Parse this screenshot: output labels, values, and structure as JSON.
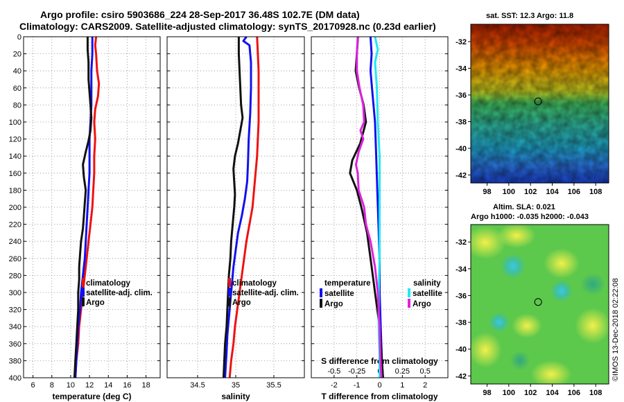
{
  "header": {
    "title_line1": "Argo profile: csiro 5903686_224 28-Sep-2017 36.48S 102.7E (DM data)",
    "title_line2": "Climatology: CARS2009. Satellite-adjusted climatology: synTS_20170928.nc (0.23d earlier)"
  },
  "colors": {
    "climatology": "#ee1111",
    "satellite": "#1111ee",
    "argo": "#111111",
    "satellite_cyan": "#22e8f0",
    "argo_magenta": "#dd22dd"
  },
  "chart_data": [
    {
      "type": "line",
      "id": "temperature",
      "xlabel": "temperature (deg C)",
      "ylabel": "",
      "xlim": [
        5,
        19.5
      ],
      "ylim": [
        400,
        0
      ],
      "xticks": [
        6,
        8,
        10,
        12,
        14,
        16,
        18
      ],
      "xtick_labels": [
        "6",
        "8",
        "10",
        "12",
        "14",
        "16",
        "18"
      ],
      "yticks": [
        0,
        20,
        40,
        60,
        80,
        100,
        120,
        140,
        160,
        180,
        200,
        220,
        240,
        260,
        280,
        300,
        320,
        340,
        360,
        380,
        400
      ],
      "ytick_labels": [
        "0",
        "20",
        "40",
        "60",
        "80",
        "100",
        "120",
        "140",
        "160",
        "180",
        "200",
        "220",
        "240",
        "260",
        "280",
        "300",
        "320",
        "340",
        "360",
        "380",
        "400"
      ],
      "legend": [
        "climatology",
        "satellite-adj. clim.",
        "Argo"
      ],
      "series": [
        {
          "name": "climatology",
          "color": "#ee1111",
          "points": [
            [
              12.7,
              0
            ],
            [
              12.6,
              10
            ],
            [
              12.7,
              20
            ],
            [
              12.8,
              40
            ],
            [
              13.0,
              55
            ],
            [
              12.9,
              70
            ],
            [
              12.6,
              85
            ],
            [
              12.5,
              100
            ],
            [
              12.6,
              120
            ],
            [
              12.5,
              140
            ],
            [
              12.5,
              160
            ],
            [
              12.4,
              180
            ],
            [
              12.3,
              200
            ],
            [
              12.1,
              220
            ],
            [
              11.9,
              240
            ],
            [
              11.7,
              260
            ],
            [
              11.5,
              280
            ],
            [
              11.3,
              300
            ],
            [
              11.1,
              320
            ],
            [
              10.9,
              340
            ],
            [
              10.8,
              360
            ],
            [
              10.6,
              380
            ],
            [
              10.5,
              400
            ]
          ]
        },
        {
          "name": "satellite-adj. clim.",
          "color": "#1111ee",
          "points": [
            [
              12.3,
              0
            ],
            [
              12.3,
              10
            ],
            [
              12.3,
              20
            ],
            [
              12.2,
              40
            ],
            [
              12.2,
              60
            ],
            [
              12.2,
              80
            ],
            [
              12.1,
              100
            ],
            [
              12.0,
              120
            ],
            [
              12.0,
              140
            ],
            [
              12.0,
              160
            ],
            [
              11.9,
              180
            ],
            [
              11.8,
              200
            ],
            [
              11.7,
              220
            ],
            [
              11.6,
              240
            ],
            [
              11.5,
              260
            ],
            [
              11.3,
              280
            ],
            [
              11.1,
              300
            ],
            [
              11.0,
              320
            ],
            [
              10.8,
              340
            ],
            [
              10.7,
              360
            ],
            [
              10.6,
              380
            ],
            [
              10.5,
              400
            ]
          ]
        },
        {
          "name": "Argo",
          "color": "#111111",
          "points": [
            [
              11.8,
              0
            ],
            [
              11.8,
              15
            ],
            [
              11.9,
              30
            ],
            [
              11.9,
              50
            ],
            [
              12.0,
              65
            ],
            [
              12.1,
              80
            ],
            [
              12.2,
              95
            ],
            [
              12.1,
              110
            ],
            [
              11.9,
              122
            ],
            [
              11.6,
              135
            ],
            [
              11.3,
              150
            ],
            [
              11.4,
              165
            ],
            [
              11.6,
              180
            ],
            [
              11.5,
              195
            ],
            [
              11.4,
              210
            ],
            [
              11.3,
              225
            ],
            [
              11.1,
              240
            ],
            [
              11.0,
              255
            ],
            [
              10.9,
              270
            ],
            [
              10.9,
              285
            ],
            [
              10.8,
              300
            ],
            [
              10.8,
              320
            ],
            [
              10.7,
              340
            ],
            [
              10.6,
              360
            ],
            [
              10.5,
              380
            ],
            [
              10.4,
              400
            ]
          ]
        }
      ]
    },
    {
      "type": "line",
      "id": "salinity",
      "xlabel": "salinity",
      "ylabel": "",
      "xlim": [
        34.1,
        35.9
      ],
      "ylim": [
        400,
        0
      ],
      "xticks": [
        34.5,
        35.0,
        35.5
      ],
      "xtick_labels": [
        "34.5",
        "35",
        "35.5"
      ],
      "legend": [
        "climatology",
        "satellite-adj. clim.",
        "Argo"
      ],
      "series": [
        {
          "name": "climatology",
          "color": "#ee1111",
          "points": [
            [
              35.28,
              0
            ],
            [
              35.29,
              20
            ],
            [
              35.3,
              40
            ],
            [
              35.3,
              60
            ],
            [
              35.3,
              80
            ],
            [
              35.3,
              100
            ],
            [
              35.29,
              120
            ],
            [
              35.28,
              140
            ],
            [
              35.26,
              160
            ],
            [
              35.24,
              180
            ],
            [
              35.22,
              200
            ],
            [
              35.18,
              220
            ],
            [
              35.14,
              240
            ],
            [
              35.11,
              260
            ],
            [
              35.08,
              280
            ],
            [
              35.05,
              300
            ],
            [
              35.02,
              320
            ],
            [
              34.99,
              340
            ],
            [
              34.97,
              360
            ],
            [
              34.94,
              380
            ],
            [
              34.92,
              400
            ]
          ]
        },
        {
          "name": "satellite-adj. clim.",
          "color": "#1111ee",
          "points": [
            [
              35.14,
              0
            ],
            [
              35.1,
              5
            ],
            [
              35.18,
              10
            ],
            [
              35.2,
              30
            ],
            [
              35.2,
              60
            ],
            [
              35.19,
              90
            ],
            [
              35.17,
              120
            ],
            [
              35.16,
              150
            ],
            [
              35.15,
              170
            ],
            [
              35.12,
              190
            ],
            [
              35.08,
              210
            ],
            [
              35.03,
              230
            ],
            [
              35.0,
              250
            ],
            [
              34.97,
              270
            ],
            [
              34.95,
              290
            ],
            [
              34.93,
              310
            ],
            [
              34.91,
              330
            ],
            [
              34.89,
              350
            ],
            [
              34.88,
              370
            ],
            [
              34.86,
              400
            ]
          ]
        },
        {
          "name": "Argo",
          "color": "#111111",
          "points": [
            [
              35.04,
              0
            ],
            [
              35.04,
              20
            ],
            [
              35.05,
              40
            ],
            [
              35.06,
              60
            ],
            [
              35.07,
              80
            ],
            [
              35.09,
              95
            ],
            [
              35.07,
              105
            ],
            [
              35.05,
              115
            ],
            [
              35.03,
              125
            ],
            [
              34.99,
              140
            ],
            [
              34.97,
              155
            ],
            [
              34.98,
              170
            ],
            [
              34.99,
              185
            ],
            [
              34.98,
              200
            ],
            [
              34.96,
              220
            ],
            [
              34.94,
              240
            ],
            [
              34.93,
              260
            ],
            [
              34.91,
              280
            ],
            [
              34.9,
              300
            ],
            [
              34.89,
              320
            ],
            [
              34.88,
              340
            ],
            [
              34.86,
              360
            ],
            [
              34.85,
              380
            ],
            [
              34.84,
              400
            ]
          ]
        }
      ]
    },
    {
      "type": "line",
      "id": "difference",
      "xlabel": "T difference from climatology",
      "top_xlabel": "S difference from climatology",
      "xlim": [
        -3,
        3
      ],
      "ylim": [
        400,
        0
      ],
      "xticks": [
        -2,
        -1,
        0,
        1,
        2
      ],
      "xtick_labels": [
        "-2",
        "-1",
        "0",
        "1",
        "2"
      ],
      "s_xlim": [
        -0.75,
        0.75
      ],
      "s_xticks": [
        -0.5,
        -0.25,
        0,
        0.25,
        0.5
      ],
      "s_xtick_labels": [
        "-0.5",
        "-0.25",
        "0",
        "0.25",
        "0.5"
      ],
      "legend_temperature": {
        "heading": "temperature",
        "items": [
          "satellite",
          "Argo"
        ]
      },
      "legend_salinity": {
        "heading": "salinity",
        "items": [
          "satellite",
          "Argo"
        ]
      },
      "series": [
        {
          "name": "T satellite",
          "color": "#1111ee",
          "points": [
            [
              -0.4,
              0
            ],
            [
              -0.35,
              20
            ],
            [
              -0.4,
              40
            ],
            [
              -0.3,
              70
            ],
            [
              -0.2,
              100
            ],
            [
              -0.15,
              140
            ],
            [
              -0.1,
              180
            ],
            [
              -0.05,
              220
            ],
            [
              0.0,
              260
            ],
            [
              0.0,
              300
            ],
            [
              0.05,
              340
            ],
            [
              0.1,
              380
            ],
            [
              0.15,
              400
            ]
          ]
        },
        {
          "name": "T Argo",
          "color": "#111111",
          "points": [
            [
              -0.95,
              0
            ],
            [
              -1.0,
              20
            ],
            [
              -1.05,
              40
            ],
            [
              -0.9,
              60
            ],
            [
              -0.7,
              80
            ],
            [
              -0.6,
              100
            ],
            [
              -0.85,
              125
            ],
            [
              -1.2,
              145
            ],
            [
              -1.3,
              160
            ],
            [
              -1.0,
              180
            ],
            [
              -0.8,
              200
            ],
            [
              -0.55,
              230
            ],
            [
              -0.4,
              260
            ],
            [
              -0.2,
              300
            ],
            [
              0.0,
              340
            ],
            [
              0.1,
              380
            ],
            [
              0.15,
              400
            ]
          ]
        },
        {
          "name": "S satellite",
          "color": "#22e8f0",
          "points": [
            [
              -0.05,
              0
            ],
            [
              -0.02,
              15
            ],
            [
              -0.05,
              30
            ],
            [
              -0.03,
              60
            ],
            [
              -0.02,
              100
            ],
            [
              0.0,
              140
            ],
            [
              0.0,
              200
            ],
            [
              0.0,
              260
            ],
            [
              -0.01,
              300
            ],
            [
              -0.01,
              340
            ],
            [
              0.0,
              380
            ],
            [
              0.0,
              400
            ]
          ]
        },
        {
          "name": "S Argo",
          "color": "#dd22dd",
          "points": [
            [
              -0.24,
              0
            ],
            [
              -0.25,
              20
            ],
            [
              -0.25,
              40
            ],
            [
              -0.22,
              60
            ],
            [
              -0.18,
              80
            ],
            [
              -0.17,
              100
            ],
            [
              -0.21,
              110
            ],
            [
              -0.18,
              120
            ],
            [
              -0.23,
              135
            ],
            [
              -0.26,
              150
            ],
            [
              -0.24,
              160
            ],
            [
              -0.23,
              180
            ],
            [
              -0.17,
              200
            ],
            [
              -0.15,
              220
            ],
            [
              -0.1,
              240
            ],
            [
              -0.05,
              270
            ],
            [
              -0.02,
              300
            ],
            [
              0.0,
              340
            ],
            [
              0.01,
              380
            ],
            [
              0.02,
              400
            ]
          ]
        }
      ]
    },
    {
      "type": "heatmap",
      "id": "sst_map",
      "title": "sat. SST: 12.3 Argo: 11.8",
      "xticks": [
        98,
        100,
        102,
        104,
        106,
        108
      ],
      "xtick_labels": [
        "98",
        "100",
        "102",
        "104",
        "106",
        "108"
      ],
      "yticks": [
        -32,
        -34,
        -36,
        -38,
        -40,
        -42
      ],
      "ytick_labels": [
        "-32",
        "-34",
        "-36",
        "-38",
        "-40",
        "-42"
      ],
      "xlim": [
        96.5,
        109.2
      ],
      "ylim": [
        -42.6,
        -30.7
      ],
      "marker": {
        "lon": 102.7,
        "lat": -36.48
      }
    },
    {
      "type": "heatmap",
      "id": "sla_map",
      "title": "Altim. SLA: 0.021",
      "subtitle": "Argo h1000: -0.035 h2000: -0.043",
      "xticks": [
        98,
        100,
        102,
        104,
        106,
        108
      ],
      "xtick_labels": [
        "98",
        "100",
        "102",
        "104",
        "106",
        "108"
      ],
      "yticks": [
        -32,
        -34,
        -36,
        -38,
        -40,
        -42
      ],
      "ytick_labels": [
        "-32",
        "-34",
        "-36",
        "-38",
        "-40",
        "-42"
      ],
      "xlim": [
        96.5,
        109.2
      ],
      "ylim": [
        -42.6,
        -30.7
      ],
      "marker": {
        "lon": 102.7,
        "lat": -36.48
      }
    }
  ],
  "credit": "©IMOS 13-Dec-2018 02:22:08"
}
